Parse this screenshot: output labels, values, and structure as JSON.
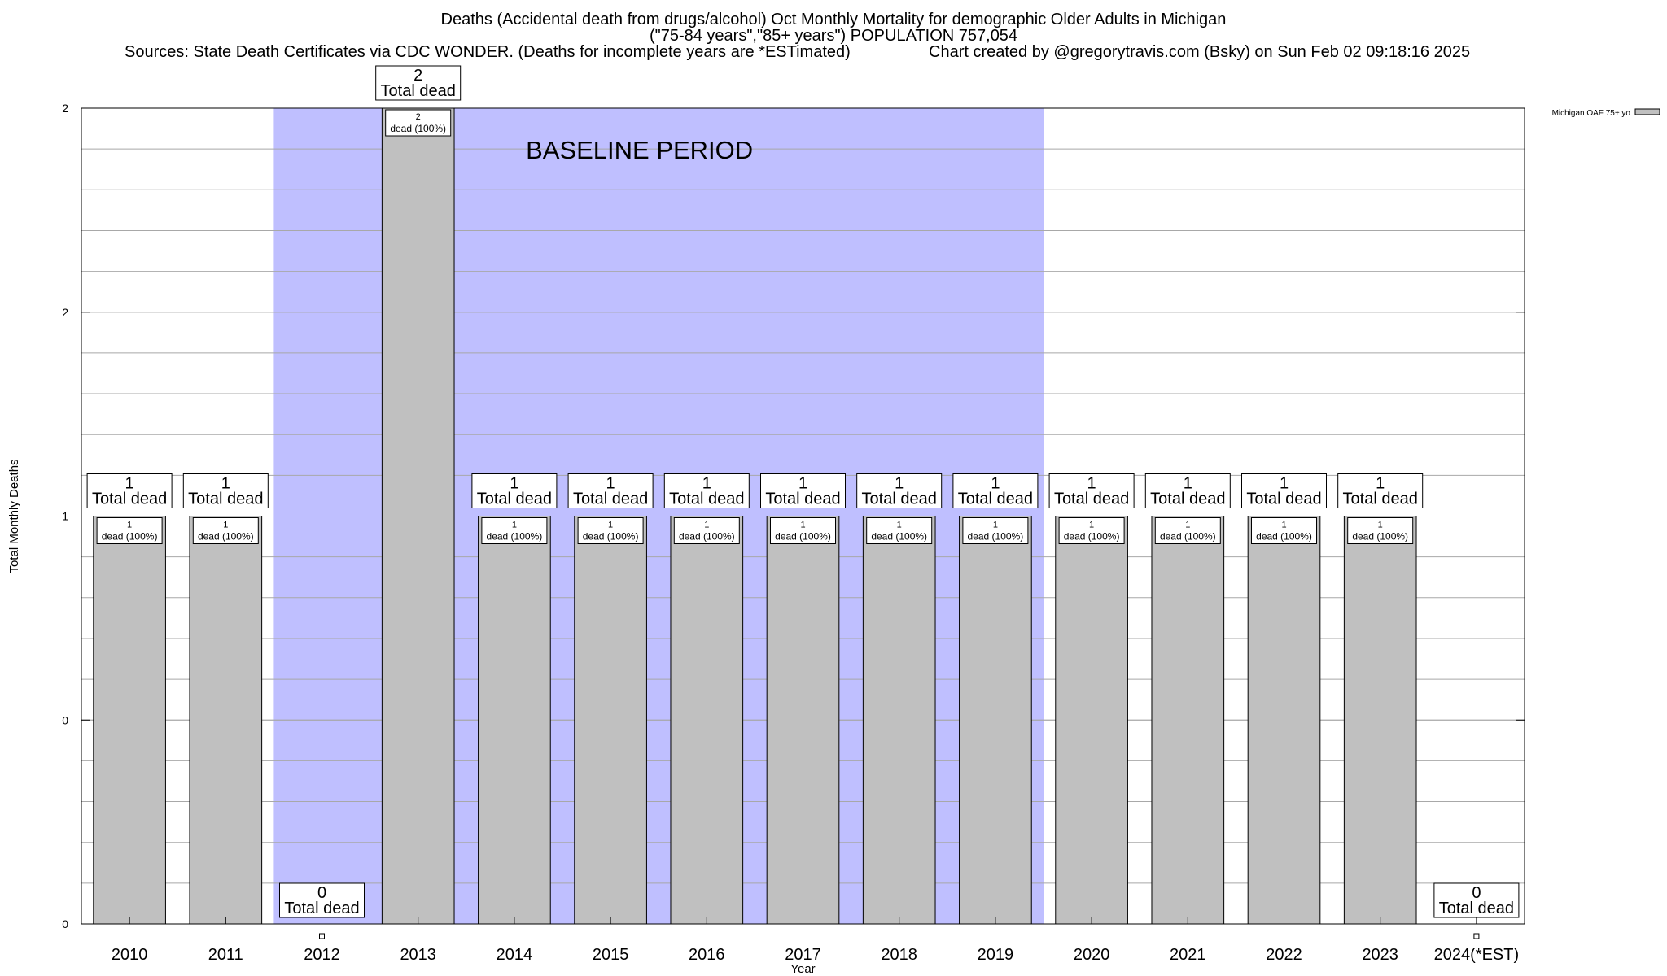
{
  "header": {
    "title_line1": "Deaths (Accidental death from drugs/alcohol) Oct Monthly Mortality for demographic Older Adults in Michigan",
    "title_line2": "(\"75-84 years\",\"85+ years\") POPULATION 757,054",
    "sources": "Sources: State Death Certificates via CDC WONDER. (Deaths for incomplete years are *ESTimated)",
    "credit": "Chart created by @gregorytravis.com (Bsky) on Sun Feb 02 09:18:16 2025"
  },
  "chart_data": {
    "type": "bar",
    "xlabel": "Year",
    "ylabel": "Total Monthly Deaths",
    "categories": [
      "2010",
      "2011",
      "2012",
      "2013",
      "2014",
      "2015",
      "2016",
      "2017",
      "2018",
      "2019",
      "2020",
      "2021",
      "2022",
      "2023",
      "2024(*EST)"
    ],
    "series": [
      {
        "name": "Michigan OAF 75+ yo",
        "values": [
          1,
          1,
          0,
          2,
          1,
          1,
          1,
          1,
          1,
          1,
          1,
          1,
          1,
          1,
          0
        ],
        "color": "#c0c0c0"
      }
    ],
    "ylim": [
      0,
      2
    ],
    "yticks": [
      {
        "value": 0,
        "label": "0"
      },
      {
        "value": 0.5,
        "label": "0"
      },
      {
        "value": 1,
        "label": "1"
      },
      {
        "value": 1.5,
        "label": "2"
      },
      {
        "value": 2,
        "label": "2"
      }
    ],
    "minor_grid_step": 0.1,
    "grid": true,
    "legend": "top-right",
    "total_label_suffix": "Total dead",
    "bar_label_suffix": "dead (100%)",
    "baseline": {
      "label": "BASELINE PERIOD",
      "start": "2012",
      "end": "2019",
      "color": "#bfbfff"
    }
  }
}
